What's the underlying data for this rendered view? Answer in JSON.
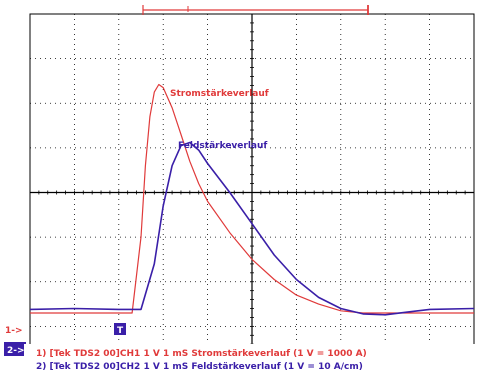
{
  "chart_data": {
    "type": "line",
    "title": "",
    "xlabel": "",
    "ylabel": "",
    "grid": true,
    "xlim": [
      0,
      10
    ],
    "ylim": [
      -4,
      4
    ],
    "channel_markers": [
      "1->",
      "2->"
    ],
    "trigger_marker": "T",
    "series": [
      {
        "name": "Stromstärkeverlauf",
        "color": "#e03a3a",
        "annotation": "Stromstärkeverlauf",
        "x": [
          0.0,
          1.0,
          2.0,
          2.3,
          2.5,
          2.6,
          2.7,
          2.8,
          2.9,
          3.0,
          3.2,
          3.4,
          3.6,
          3.8,
          4.0,
          4.5,
          5.0,
          5.5,
          6.0,
          6.5,
          7.0,
          7.5,
          8.0,
          9.0,
          10.0
        ],
        "y": [
          -2.7,
          -2.7,
          -2.7,
          -2.7,
          -1.0,
          0.6,
          1.7,
          2.25,
          2.42,
          2.35,
          1.9,
          1.3,
          0.7,
          0.2,
          -0.2,
          -0.9,
          -1.5,
          -1.95,
          -2.3,
          -2.5,
          -2.65,
          -2.7,
          -2.7,
          -2.7,
          -2.7
        ]
      },
      {
        "name": "Feldstärkeverlauf",
        "color": "#3a1fa8",
        "annotation": "Feldstärkeverlauf",
        "x": [
          0.0,
          1.0,
          2.0,
          2.5,
          2.8,
          3.0,
          3.2,
          3.4,
          3.6,
          3.8,
          4.0,
          4.5,
          5.0,
          5.5,
          6.0,
          6.5,
          7.0,
          7.5,
          8.0,
          8.5,
          9.0,
          10.0
        ],
        "y": [
          -2.62,
          -2.6,
          -2.62,
          -2.62,
          -1.6,
          -0.3,
          0.6,
          1.05,
          1.12,
          0.95,
          0.65,
          0.0,
          -0.7,
          -1.4,
          -1.95,
          -2.35,
          -2.6,
          -2.72,
          -2.74,
          -2.68,
          -2.62,
          -2.6
        ]
      }
    ]
  },
  "legend": {
    "line1": "1) [Tek TDS2 00]CH1  1  V    1 mS Stromstärkeverlauf (1 V = 1000  A)",
    "line2": "2) [Tek TDS2 00]CH2  1  V    1 mS Feldstärkeverlauf (1 V = 10 A/cm)"
  },
  "colors": {
    "ch1": "#e03a3a",
    "ch2": "#3a1fa8",
    "grid": "#000000"
  }
}
